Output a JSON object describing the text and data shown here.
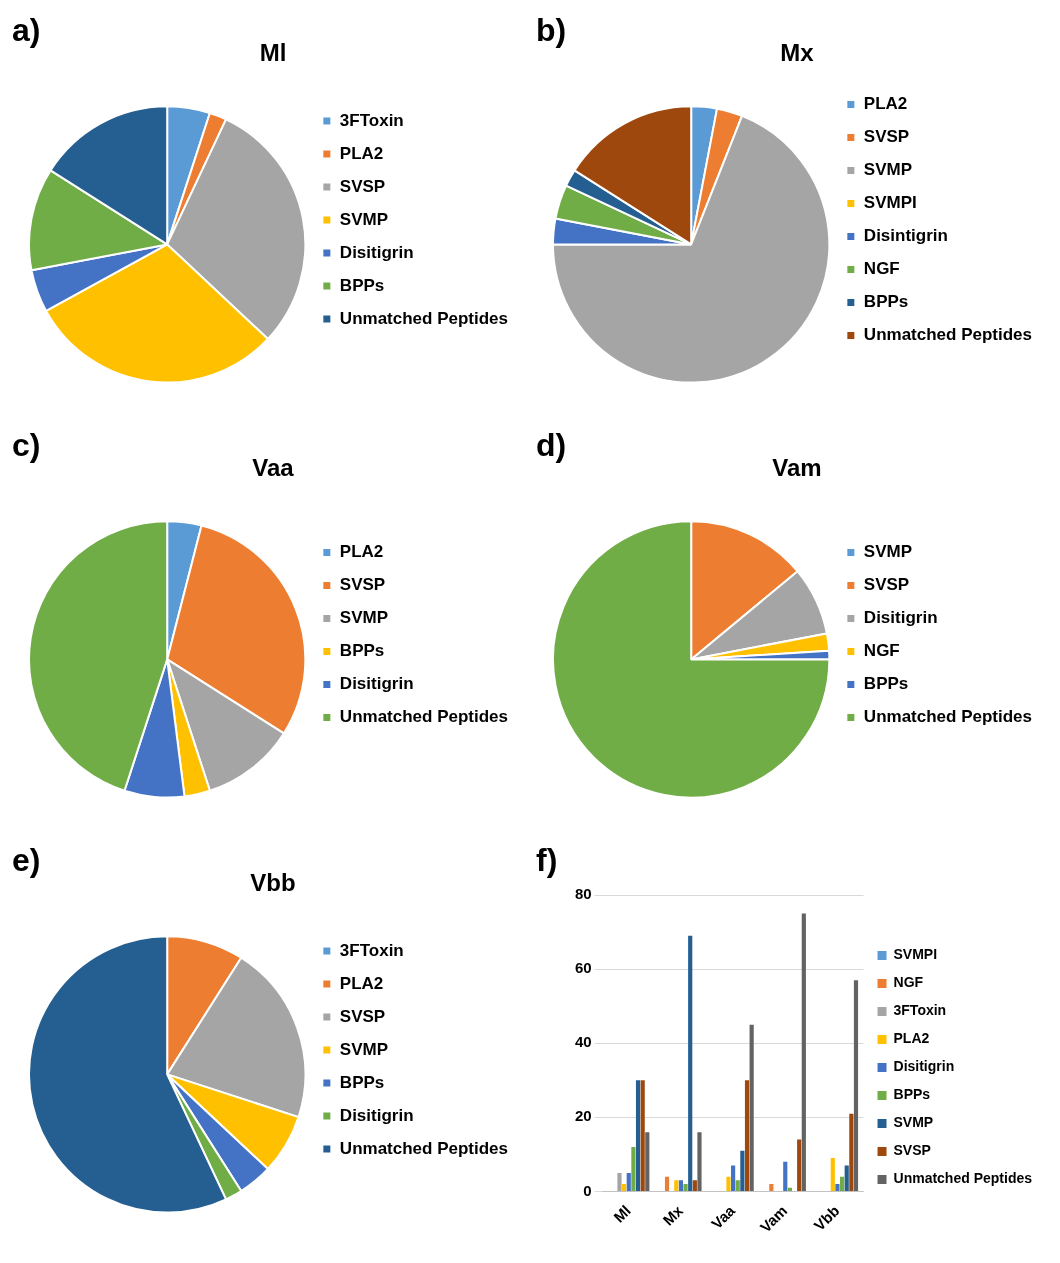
{
  "chart_data": [
    {
      "type": "pie",
      "title": "Ml",
      "annotations": [
        "a)"
      ],
      "legend": "right",
      "categories": [
        "3FToxin",
        "PLA2",
        "SVSP",
        "SVMP",
        "Disitigrin",
        "BPPs",
        "Unmatched Peptides"
      ],
      "values": [
        5,
        2,
        30,
        30,
        5,
        12,
        16
      ],
      "colors": [
        "#5b9bd5",
        "#ed7d31",
        "#a5a5a5",
        "#ffc000",
        "#4472c4",
        "#70ad47",
        "#255e91"
      ]
    },
    {
      "type": "pie",
      "title": "Mx",
      "annotations": [
        "b)"
      ],
      "legend": "right",
      "categories": [
        "PLA2",
        "SVSP",
        "SVMP",
        "SVMPI",
        "Disintigrin",
        "NGF",
        "BPPs",
        "Unmatched Peptides"
      ],
      "values": [
        3,
        3,
        69,
        0,
        3,
        4,
        2,
        16
      ],
      "colors": [
        "#5b9bd5",
        "#ed7d31",
        "#a5a5a5",
        "#ffc000",
        "#4472c4",
        "#70ad47",
        "#255e91",
        "#9e480e"
      ]
    },
    {
      "type": "pie",
      "title": "Vaa",
      "annotations": [
        "c)"
      ],
      "legend": "right",
      "categories": [
        "PLA2",
        "SVSP",
        "SVMP",
        "BPPs",
        "Disitigrin",
        "Unmatched Peptides"
      ],
      "values": [
        4,
        30,
        11,
        3,
        7,
        45
      ],
      "colors": [
        "#5b9bd5",
        "#ed7d31",
        "#a5a5a5",
        "#ffc000",
        "#4472c4",
        "#70ad47"
      ]
    },
    {
      "type": "pie",
      "title": "Vam",
      "annotations": [
        "d)"
      ],
      "legend": "right",
      "categories": [
        "SVMP",
        "SVSP",
        "Disitigrin",
        "NGF",
        "BPPs",
        "Unmatched Peptides"
      ],
      "values": [
        0,
        14,
        8,
        2,
        1,
        75
      ],
      "colors": [
        "#5b9bd5",
        "#ed7d31",
        "#a5a5a5",
        "#ffc000",
        "#4472c4",
        "#70ad47"
      ]
    },
    {
      "type": "pie",
      "title": "Vbb",
      "annotations": [
        "e)"
      ],
      "legend": "right",
      "categories": [
        "3FToxin",
        "PLA2",
        "SVSP",
        "SVMP",
        "BPPs",
        "Disitigrin",
        "Unmatched Peptides"
      ],
      "values": [
        0,
        9,
        21,
        7,
        4,
        2,
        57
      ],
      "colors": [
        "#5b9bd5",
        "#ed7d31",
        "#a5a5a5",
        "#ffc000",
        "#4472c4",
        "#70ad47",
        "#255e91"
      ]
    },
    {
      "type": "bar",
      "annotations": [
        "f)"
      ],
      "legend": "right",
      "grid": "y",
      "categories": [
        "Ml",
        "Mx",
        "Vaa",
        "Vam",
        "Vbb"
      ],
      "ylim": [
        0,
        80
      ],
      "yticks": [
        0,
        20,
        40,
        60,
        80
      ],
      "series": [
        {
          "name": "SVMPI",
          "color": "#5b9bd5",
          "values": [
            null,
            0,
            null,
            null,
            null
          ]
        },
        {
          "name": "NGF",
          "color": "#ed7d31",
          "values": [
            null,
            4,
            null,
            2,
            null
          ]
        },
        {
          "name": "3FToxin",
          "color": "#a5a5a5",
          "values": [
            5,
            null,
            null,
            null,
            0
          ]
        },
        {
          "name": "PLA2",
          "color": "#ffc000",
          "values": [
            2,
            3,
            4,
            null,
            9
          ]
        },
        {
          "name": "Disitigrin",
          "color": "#4472c4",
          "values": [
            5,
            3,
            7,
            8,
            2
          ]
        },
        {
          "name": "BPPs",
          "color": "#70ad47",
          "values": [
            12,
            2,
            3,
            1,
            4
          ]
        },
        {
          "name": "SVMP",
          "color": "#255e91",
          "values": [
            30,
            69,
            11,
            0,
            7
          ]
        },
        {
          "name": "SVSP",
          "color": "#9e480e",
          "values": [
            30,
            3,
            30,
            14,
            21
          ]
        },
        {
          "name": "Unmatched Peptides",
          "color": "#636363",
          "values": [
            16,
            16,
            45,
            75,
            57
          ]
        }
      ]
    }
  ]
}
